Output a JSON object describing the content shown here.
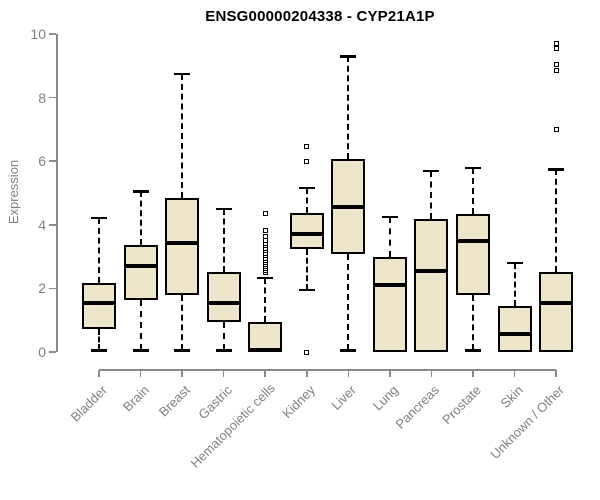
{
  "chart_data": {
    "type": "boxplot",
    "title": "ENSG00000204338 - CYP21A1P",
    "ylabel": "Expression",
    "xlabel": "",
    "ylim": [
      0,
      10
    ],
    "yticks": [
      0,
      2,
      4,
      6,
      8,
      10
    ],
    "grid": false,
    "legend": "none",
    "colors": {
      "box_fill": "#EDE6CB",
      "box_border": "#000000",
      "median": "#000000",
      "whisker": "#000000",
      "axis_line": "#8A8A8A",
      "tick_text": "#808080",
      "title_text": "#000000",
      "background": "#FFFFFF"
    },
    "categories": [
      "Bladder",
      "Brain",
      "Breast",
      "Gastric",
      "Hematopoietic cells",
      "Kidney",
      "Liver",
      "Lung",
      "Pancreas",
      "Prostate",
      "Skin",
      "Unknown / Other"
    ],
    "series": [
      {
        "name": "Bladder",
        "low": 0.05,
        "q1": 0.72,
        "median": 1.55,
        "q3": 2.17,
        "high": 4.22,
        "outliers": []
      },
      {
        "name": "Brain",
        "low": 0.05,
        "q1": 1.65,
        "median": 2.72,
        "q3": 3.37,
        "high": 5.05,
        "outliers": []
      },
      {
        "name": "Breast",
        "low": 0.05,
        "q1": 1.8,
        "median": 3.43,
        "q3": 4.85,
        "high": 8.75,
        "outliers": []
      },
      {
        "name": "Gastric",
        "low": 0.05,
        "q1": 0.94,
        "median": 1.54,
        "q3": 2.52,
        "high": 4.5,
        "outliers": []
      },
      {
        "name": "Hematopoietic cells",
        "low": 0,
        "q1": 0,
        "median": 0.07,
        "q3": 0.93,
        "high": 2.33,
        "outliers": [
          2.49,
          2.55,
          2.62,
          2.68,
          2.75,
          2.82,
          2.88,
          2.95,
          3.02,
          3.1,
          3.18,
          3.27,
          3.35,
          3.42,
          3.5,
          3.62,
          3.81,
          4.35
        ]
      },
      {
        "name": "Kidney",
        "low": 1.95,
        "q1": 3.24,
        "median": 3.7,
        "q3": 4.37,
        "high": 5.17,
        "outliers": [
          6.45,
          6.0,
          0.0
        ]
      },
      {
        "name": "Liver",
        "low": 0.05,
        "q1": 3.09,
        "median": 4.55,
        "q3": 6.08,
        "high": 9.3,
        "outliers": []
      },
      {
        "name": "Lung",
        "low": 0,
        "q1": 0,
        "median": 2.11,
        "q3": 3.0,
        "high": 4.25,
        "outliers": []
      },
      {
        "name": "Pancreas",
        "low": 0,
        "q1": 0,
        "median": 2.55,
        "q3": 4.19,
        "high": 5.7,
        "outliers": []
      },
      {
        "name": "Prostate",
        "low": 0.05,
        "q1": 1.8,
        "median": 3.5,
        "q3": 4.35,
        "high": 5.8,
        "outliers": []
      },
      {
        "name": "Skin",
        "low": 0,
        "q1": 0,
        "median": 0.57,
        "q3": 1.45,
        "high": 2.8,
        "outliers": []
      },
      {
        "name": "Unknown / Other",
        "low": 0,
        "q1": 0,
        "median": 1.55,
        "q3": 2.52,
        "high": 5.75,
        "outliers": [
          6.99,
          8.85,
          9.05,
          9.55,
          9.7
        ]
      }
    ]
  }
}
